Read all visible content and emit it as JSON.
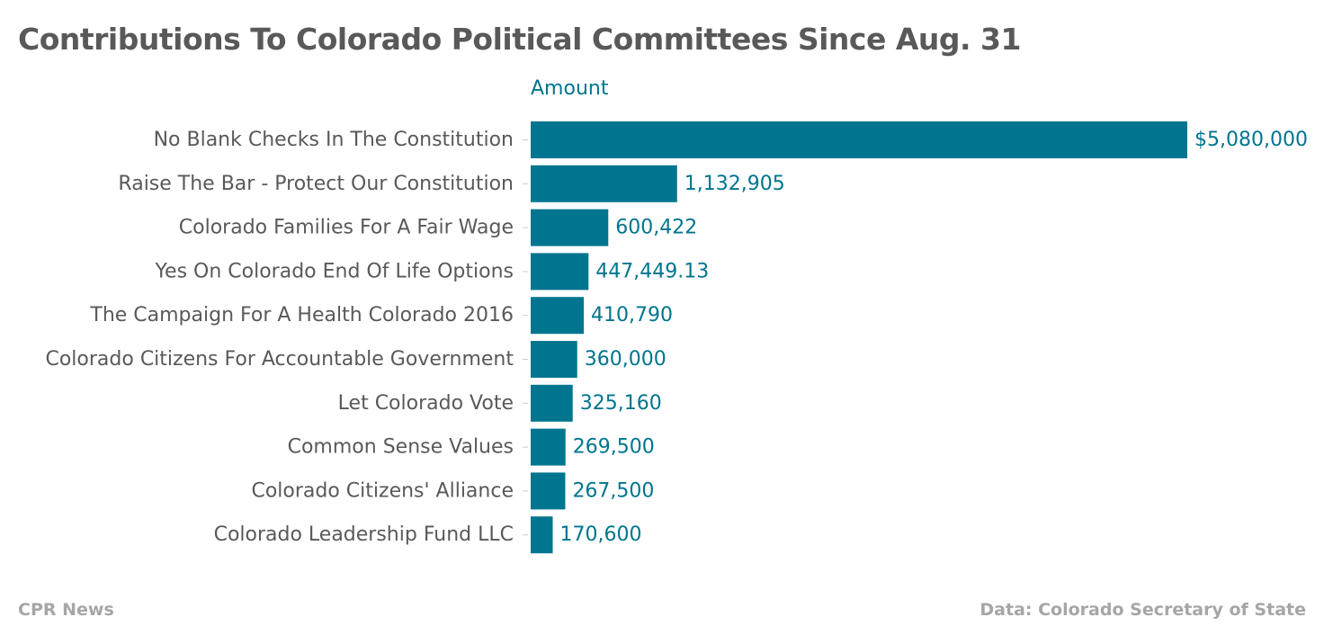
{
  "chart_data": {
    "type": "bar",
    "orientation": "horizontal",
    "title": "Contributions To Colorado Political Committees Since Aug. 31",
    "categories": [
      "No Blank Checks In The Constitution",
      "Raise The Bar - Protect Our Constitution",
      "Colorado Families For A Fair Wage",
      "Yes On Colorado End Of Life Options",
      "The Campaign For A Health Colorado 2016",
      "Colorado Citizens For Accountable Government",
      "Let Colorado Vote",
      "Common Sense Values",
      "Colorado Citizens' Alliance",
      "Colorado Leadership Fund LLC"
    ],
    "series": [
      {
        "name": "Amount",
        "values": [
          5080000,
          1132905,
          600422,
          447449.13,
          410790,
          360000,
          325160,
          269500,
          267500,
          170600
        ],
        "labels": [
          "$5,080,000",
          "1,132,905",
          "600,422",
          "447,449.13",
          "410,790",
          "360,000",
          "325,160",
          "269,500",
          "267,500",
          "170,600"
        ],
        "color": "#00758f"
      }
    ],
    "xlim": [
      0,
      5080000
    ],
    "grid": false,
    "legend": "none"
  },
  "footer": {
    "source": "CPR News",
    "credit": "Data: Colorado Secretary of State"
  },
  "colors": {
    "bar": "#00758f",
    "text": "#595959",
    "footer": "#a6a6a6"
  }
}
